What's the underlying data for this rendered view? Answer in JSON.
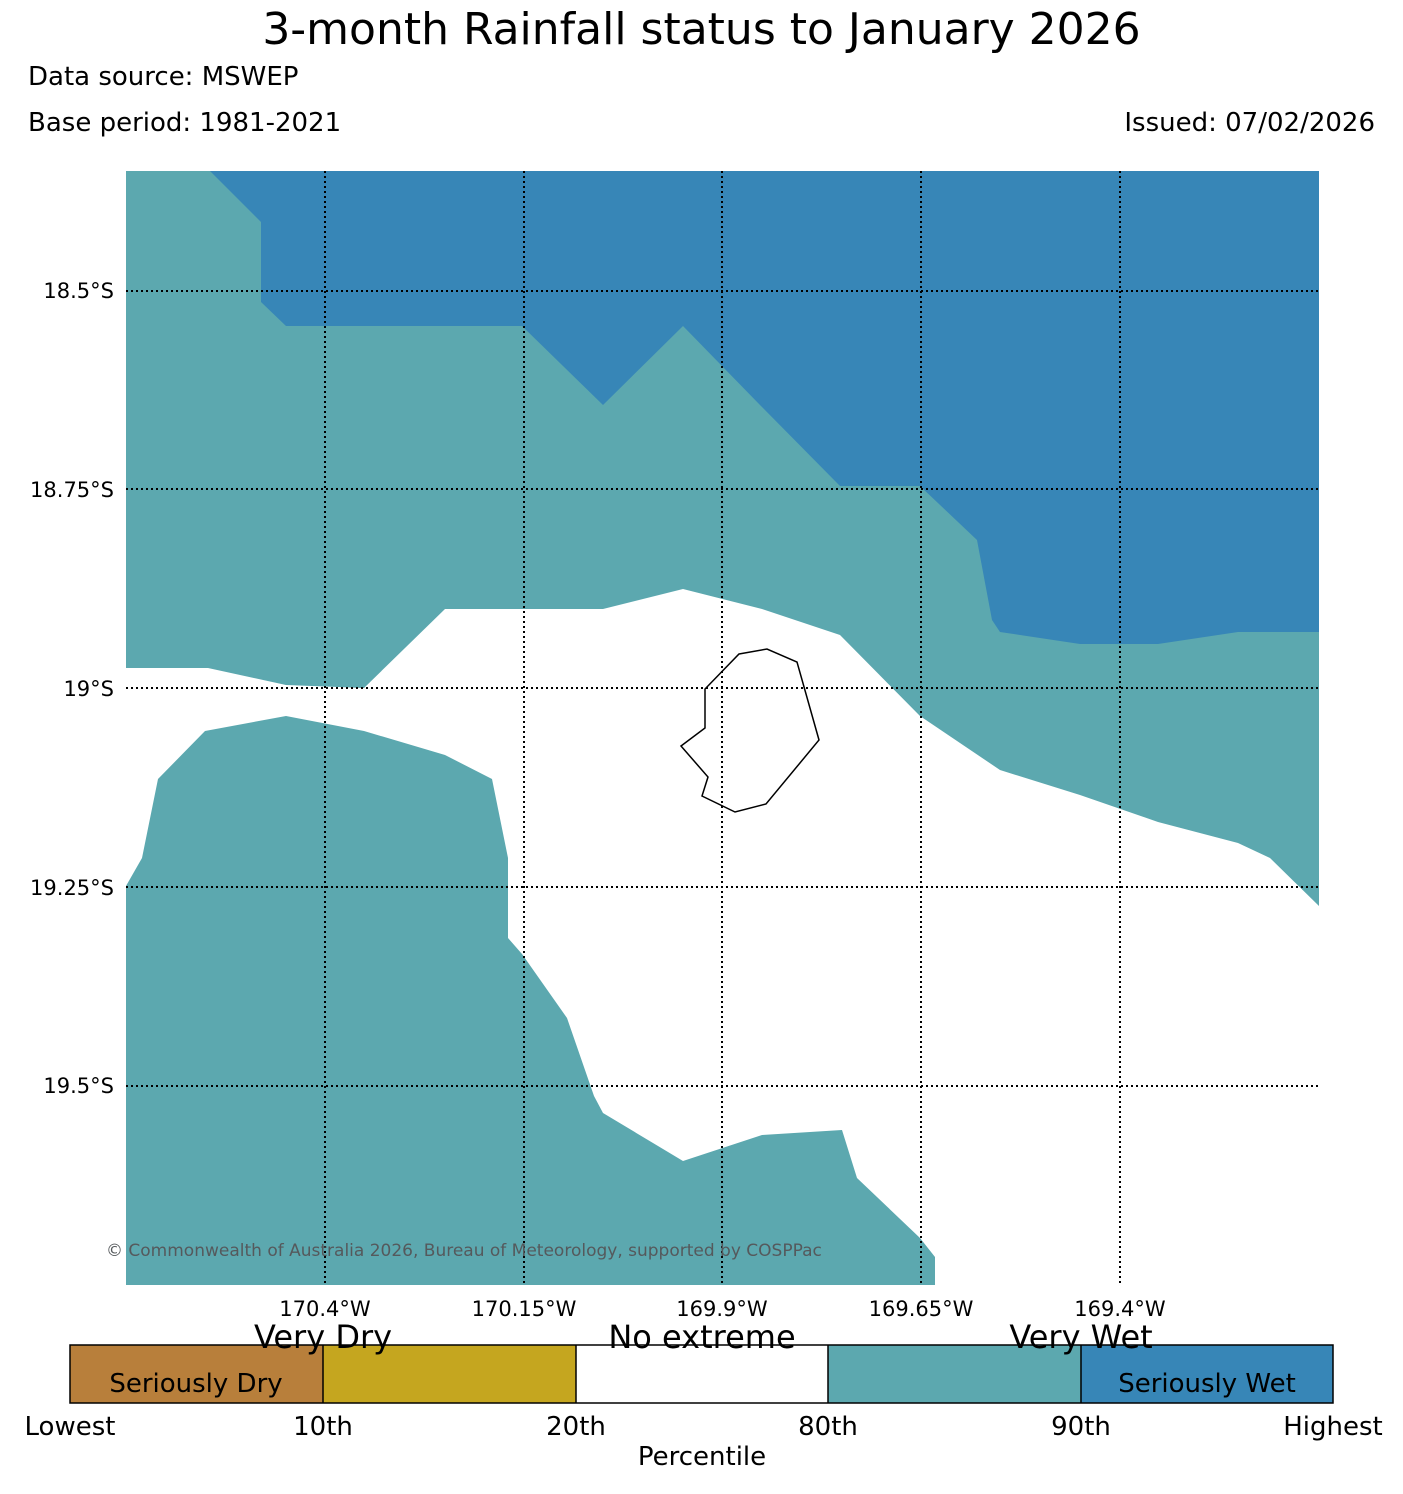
{
  "header": {
    "title": "3-month Rainfall status to January 2026",
    "data_source": "Data source: MSWEP",
    "base_period": "Base period: 1981-2021",
    "issued": "Issued: 07/02/2026"
  },
  "map": {
    "lat_labels": [
      "18.5°S",
      "18.75°S",
      "19°S",
      "19.25°S",
      "19.5°S"
    ],
    "lon_labels": [
      "170.4°W",
      "170.15°W",
      "169.9°W",
      "169.65°W",
      "169.4°W"
    ],
    "copyright": "© Commonwealth of Australia 2026, Bureau of Meteorology, supported by COSPPac",
    "regions": [
      "Very Wet",
      "Seriously Wet",
      "No extreme"
    ]
  },
  "legend": {
    "top_labels": [
      "Very Dry",
      "No extreme",
      "Very Wet"
    ],
    "inner_labels": [
      "Seriously Dry",
      "Seriously Wet"
    ],
    "ticks": [
      "Lowest",
      "10th",
      "20th",
      "80th",
      "90th",
      "Highest"
    ],
    "axis_label": "Percentile",
    "colors": {
      "seriously_dry": "#b87f3b",
      "very_dry": "#c5a61f",
      "no_extreme": "#ffffff",
      "very_wet": "#5ca8af",
      "seriously_wet": "#3786b7"
    }
  }
}
